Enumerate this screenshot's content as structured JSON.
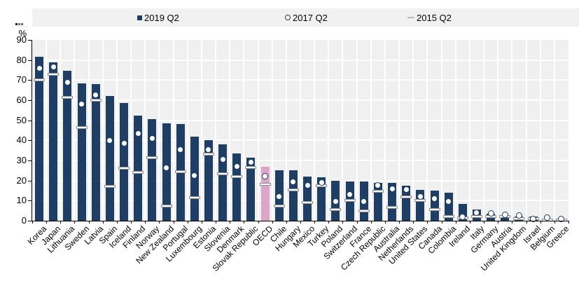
{
  "y_axis": {
    "label": "%",
    "tick_min": 0,
    "tick_max": 90,
    "tick_step": 10
  },
  "artifact_colors": [
    "#1a1a1a",
    "#c86820",
    "#3a74b8"
  ],
  "chart_data": {
    "type": "bar",
    "title": "",
    "xlabel": "",
    "ylabel": "%",
    "ylim": [
      0,
      90
    ],
    "grid": true,
    "legend_position": "top",
    "plot_background": "#f0f0f0",
    "legend_background": "#f1f1f1",
    "highlight_category": "OECD",
    "highlight_color": "#dda6c9",
    "categories": [
      "Korea",
      "Japan",
      "Lithuania",
      "Sweden",
      "Latvia",
      "Spain",
      "Iceland",
      "Finland",
      "Norway",
      "New Zealand",
      "Portugal",
      "Luxembourg",
      "Estonia",
      "Slovenia",
      "Denmark",
      "Slovak Republic",
      "OECD",
      "Chile",
      "Hungary",
      "Mexico",
      "Turkey",
      "Poland",
      "Switzerland",
      "France",
      "Czech Republic",
      "Australia",
      "Netherlands",
      "United States",
      "Canada",
      "Colombia",
      "Ireland",
      "Italy",
      "Germany",
      "Austria",
      "United Kingdom",
      "Israel",
      "Belgium",
      "Greece"
    ],
    "series": [
      {
        "name": "2019 Q2",
        "marker": "bar",
        "color": "#1e3e63",
        "values": [
          81.5,
          79,
          74.5,
          68.5,
          68,
          62,
          58.5,
          52.5,
          50.5,
          48.5,
          48,
          42,
          40,
          38,
          33.5,
          31.5,
          27,
          25,
          25,
          22,
          21.5,
          20,
          19.5,
          19.5,
          19,
          19,
          17.5,
          15.5,
          15,
          14,
          8.5,
          5.5,
          3.5,
          2.5,
          2,
          2,
          0.5,
          0.3
        ]
      },
      {
        "name": "2017 Q2",
        "marker": "circle",
        "fill": "#ffffff",
        "border_color": "#1e3e63",
        "values": [
          76,
          76.5,
          69,
          58,
          62.5,
          40,
          38.5,
          43.5,
          41,
          26.5,
          35.5,
          22.5,
          35.5,
          30.5,
          27,
          29,
          22,
          12,
          19.5,
          17.5,
          19,
          9.5,
          13,
          9.5,
          17.5,
          16,
          15.5,
          12,
          11,
          9.5,
          2,
          4,
          3.5,
          3,
          2.5,
          1,
          1.5,
          1
        ]
      },
      {
        "name": "2015 Q2",
        "marker": "dash",
        "fill": "#fafafa",
        "border_color": "#8f8f8f",
        "legend_color": "#b9b9b9",
        "values": [
          70,
          73,
          61.5,
          46.5,
          60,
          17,
          26,
          24,
          31.5,
          7.5,
          24.5,
          11.5,
          33,
          23.5,
          22,
          26.5,
          18,
          7.5,
          15.5,
          9,
          17.5,
          5.5,
          10,
          5,
          14.5,
          6.5,
          12,
          10,
          5.5,
          2,
          1.5,
          2,
          2,
          2,
          1,
          1,
          0.5,
          0.5
        ]
      }
    ]
  }
}
